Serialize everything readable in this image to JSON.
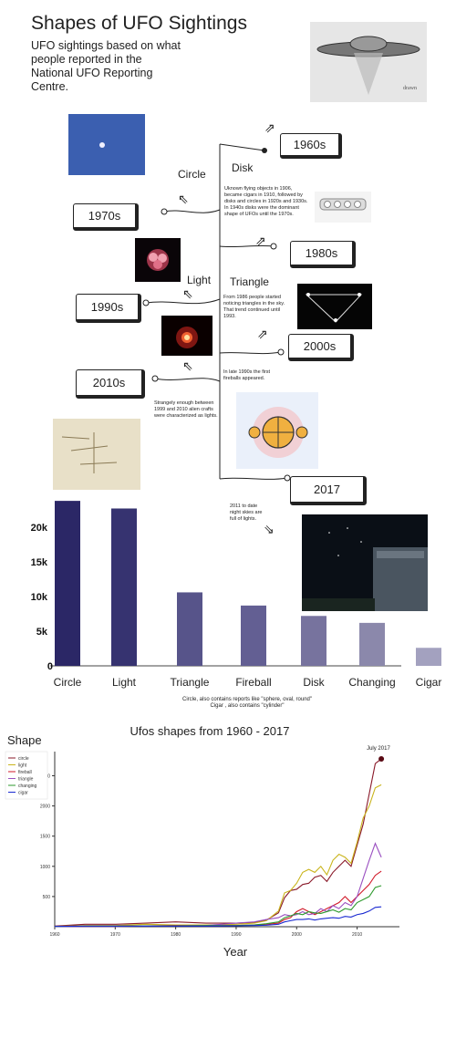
{
  "header": {
    "title": "Shapes of UFO Sightings",
    "subtitle": "UFO sightings based on what people reported in the National UFO Reporting Centre."
  },
  "timeline": {
    "decades": [
      "1960s",
      "1970s",
      "1980s",
      "1990s",
      "2000s",
      "2010s",
      "2017"
    ],
    "shapes": [
      "Circle",
      "Disk",
      "Light",
      "Triangle"
    ],
    "notes": {
      "disk": "Uknown flying objects in 1906, became cigars in 1910, followed by disks and circles in 1920s and 1930s. In 1940s disks were the dominant shape of UFOs until the 1970s.",
      "triangle": "From 1986 people started noticing triangles in the sky. That trend continued until 1993.",
      "fireball": "In late 1990s the first fireballs appeared.",
      "lights": "Strangely enough between 1999 and 2010 alien crafts were characterized as lights.",
      "sky": "2011 to date night skies are full of lights."
    }
  },
  "bar_footnote": {
    "line1": "Circle, also contains reports like \"sphere, oval, round\"",
    "line2": "Cigar , also contains \"cylinder\""
  },
  "colors": {
    "bars": [
      "#2b2766",
      "#363370",
      "#57548a",
      "#635f93",
      "#77739e",
      "#8b88ab",
      "#a3a1bf"
    ],
    "lines": {
      "circle": "#8a1a2a",
      "light": "#c9b41c",
      "fireball": "#d11a2a",
      "triangle": "#9a4fc0",
      "changing": "#2e9a2e",
      "cigar": "#1a2ad1"
    }
  },
  "chart_data": [
    {
      "type": "bar",
      "categories": [
        "Circle",
        "Light",
        "Triangle",
        "Fireball",
        "Disk",
        "Changing",
        "Cigar"
      ],
      "values": [
        23800,
        22700,
        10600,
        8700,
        7200,
        6200,
        2600
      ],
      "yticks": [
        "0",
        "5k",
        "10k",
        "15k",
        "20k"
      ],
      "ylim": [
        0,
        25000
      ]
    },
    {
      "type": "line",
      "title": "Ufos shapes from 1960 - 2017",
      "xlabel": "Year",
      "ylabel": "Shape",
      "annotation": "July 2017",
      "xticks": [
        "1960",
        "1970",
        "1980",
        "1990",
        "2000",
        "2010"
      ],
      "yticks": [
        "500",
        "1000",
        "1500",
        "2000",
        "2500"
      ],
      "xlim": [
        1960,
        2017
      ],
      "ylim": [
        0,
        2900
      ],
      "legend": "top-left",
      "x": [
        1960,
        1965,
        1970,
        1975,
        1980,
        1985,
        1990,
        1993,
        1995,
        1997,
        1998,
        1999,
        2000,
        2001,
        2002,
        2003,
        2004,
        2005,
        2006,
        2007,
        2008,
        2009,
        2010,
        2011,
        2012,
        2013,
        2014
      ],
      "series": [
        {
          "name": "circle",
          "values": [
            10,
            40,
            40,
            60,
            80,
            60,
            60,
            70,
            110,
            230,
            480,
            600,
            620,
            700,
            720,
            820,
            850,
            750,
            900,
            1000,
            1100,
            1000,
            1350,
            1700,
            2200,
            2700,
            2780
          ]
        },
        {
          "name": "light",
          "values": [
            5,
            20,
            20,
            40,
            30,
            30,
            40,
            60,
            100,
            260,
            560,
            600,
            720,
            900,
            950,
            900,
            1000,
            860,
            1100,
            1200,
            1150,
            1050,
            1400,
            1800,
            2000,
            2300,
            2350
          ]
        },
        {
          "name": "fireball",
          "values": [
            5,
            10,
            10,
            15,
            20,
            15,
            20,
            30,
            40,
            60,
            120,
            150,
            250,
            300,
            250,
            200,
            250,
            300,
            350,
            400,
            500,
            400,
            500,
            600,
            700,
            850,
            920
          ]
        },
        {
          "name": "triangle",
          "values": [
            2,
            5,
            5,
            10,
            15,
            20,
            60,
            80,
            120,
            150,
            200,
            180,
            200,
            250,
            200,
            220,
            300,
            250,
            350,
            300,
            400,
            350,
            500,
            800,
            1100,
            1380,
            1150
          ]
        },
        {
          "name": "changing",
          "values": [
            5,
            10,
            10,
            15,
            15,
            20,
            20,
            30,
            50,
            80,
            150,
            180,
            220,
            200,
            250,
            230,
            220,
            250,
            280,
            240,
            300,
            280,
            400,
            450,
            500,
            650,
            680
          ]
        },
        {
          "name": "cigar",
          "values": [
            5,
            10,
            10,
            10,
            10,
            10,
            15,
            20,
            25,
            40,
            80,
            100,
            120,
            120,
            130,
            110,
            130,
            140,
            150,
            140,
            170,
            160,
            200,
            220,
            260,
            320,
            330
          ]
        }
      ]
    }
  ]
}
